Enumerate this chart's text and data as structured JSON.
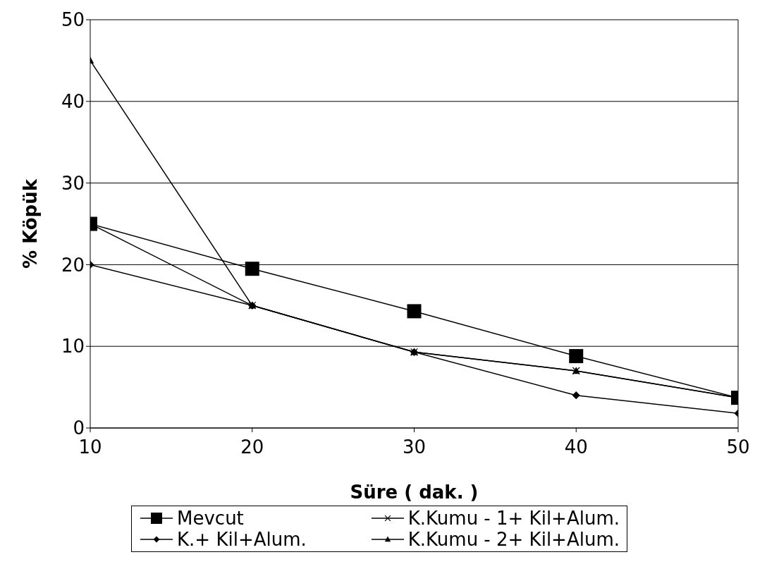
{
  "chart_data": {
    "type": "line",
    "xlabel": "Süre ( dak. )",
    "ylabel": "% Köpük",
    "x": [
      10,
      20,
      30,
      40,
      50
    ],
    "series": [
      {
        "name": "Mevcut",
        "color": "#000000",
        "marker": "square",
        "values": [
          25,
          19.5,
          14.3,
          8.8,
          3.7
        ]
      },
      {
        "name": "K.+ Kil+Alum.",
        "color": "#000000",
        "marker": "diamond",
        "values": [
          20,
          15,
          9.3,
          4,
          1.8
        ]
      },
      {
        "name": "K.Kumu - 1+ Kil+Alum.",
        "color": "#000000",
        "marker": "cross",
        "values": [
          25,
          15,
          9.3,
          7,
          3.7
        ]
      },
      {
        "name": "K.Kumu - 2+ Kil+Alum.",
        "color": "#000000",
        "marker": "triangle",
        "values": [
          45,
          15,
          9.3,
          7,
          3.7
        ]
      }
    ],
    "xlim": [
      10,
      50
    ],
    "xticks": [
      10,
      20,
      30,
      40,
      50
    ],
    "ylim": [
      0,
      50
    ],
    "yticks": [
      0,
      10,
      20,
      30,
      40,
      50
    ],
    "grid": "y",
    "legend": "bottom"
  }
}
